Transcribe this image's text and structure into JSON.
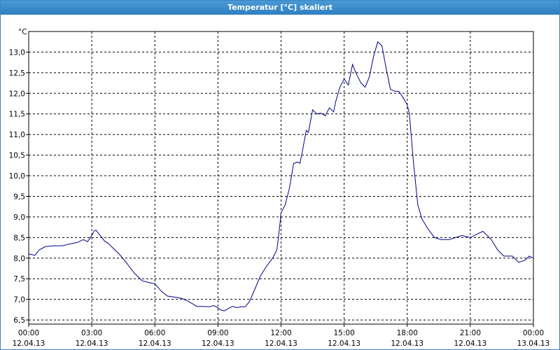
{
  "window": {
    "title": "Temperatur [°C] skaliert"
  },
  "chart_data": {
    "type": "line",
    "title": "Temperatur [°C] skaliert",
    "ylabel": "°C",
    "xlabel": "",
    "ylim": [
      6.4,
      13.5
    ],
    "y_ticks": [
      "6,5",
      "7,0",
      "7,5",
      "8,0",
      "8,5",
      "9,0",
      "9,5",
      "10,0",
      "10,5",
      "11,0",
      "11,5",
      "12,0",
      "12,5",
      "13,0"
    ],
    "y_tick_values": [
      6.5,
      7.0,
      7.5,
      8.0,
      8.5,
      9.0,
      9.5,
      10.0,
      10.5,
      11.0,
      11.5,
      12.0,
      12.5,
      13.0
    ],
    "x_ticks": [
      {
        "time": "00:00",
        "date": "12.04.13"
      },
      {
        "time": "03:00",
        "date": "12.04.13"
      },
      {
        "time": "06:00",
        "date": "12.04.13"
      },
      {
        "time": "09:00",
        "date": "12.04.13"
      },
      {
        "time": "12:00",
        "date": "12.04.13"
      },
      {
        "time": "15:00",
        "date": "12.04.13"
      },
      {
        "time": "18:00",
        "date": "12.04.13"
      },
      {
        "time": "21:00",
        "date": "12.04.13"
      },
      {
        "time": "00:00",
        "date": "13.04.13"
      }
    ],
    "x_tick_hours": [
      0,
      3,
      6,
      9,
      12,
      15,
      18,
      21,
      24
    ],
    "xlim_hours": [
      0,
      24
    ],
    "grid": true,
    "line_color": "#00008b",
    "series": [
      {
        "x": [
          0,
          0.3,
          0.5,
          0.8,
          1.2,
          1.6,
          2.0,
          2.3,
          2.6,
          2.8,
          3.0,
          3.1,
          3.2,
          3.4,
          3.6,
          3.8,
          4.0,
          4.3,
          4.6,
          5.0,
          5.4,
          5.8,
          6.0,
          6.3,
          6.6,
          7.0,
          7.3,
          7.6,
          8.0,
          8.3,
          8.6,
          8.8,
          9.0,
          9.1,
          9.3,
          9.5,
          9.7,
          9.9,
          10.1,
          10.3,
          10.5,
          10.8,
          11.0,
          11.3,
          11.6,
          11.8,
          11.9,
          12.0,
          12.2,
          12.4,
          12.6,
          12.8,
          12.9,
          13.0,
          13.2,
          13.3,
          13.5,
          13.7,
          13.9,
          14.1,
          14.3,
          14.5,
          14.6,
          14.8,
          15.0,
          15.2,
          15.4,
          15.6,
          15.8,
          16.0,
          16.2,
          16.4,
          16.6,
          16.8,
          17.0,
          17.2,
          17.4,
          17.6,
          17.8,
          18.0,
          18.1,
          18.3,
          18.5,
          18.7,
          19.0,
          19.3,
          19.6,
          20.0,
          20.3,
          20.6,
          21.0,
          21.3,
          21.6,
          22.0,
          22.3,
          22.6,
          23.0,
          23.3,
          23.6,
          23.8,
          24.0
        ],
        "y": [
          8.1,
          8.07,
          8.2,
          8.28,
          8.3,
          8.3,
          8.35,
          8.38,
          8.45,
          8.4,
          8.55,
          8.65,
          8.68,
          8.55,
          8.42,
          8.35,
          8.25,
          8.1,
          7.92,
          7.65,
          7.45,
          7.4,
          7.38,
          7.2,
          7.08,
          7.05,
          7.02,
          6.95,
          6.83,
          6.83,
          6.82,
          6.85,
          6.8,
          6.75,
          6.72,
          6.78,
          6.83,
          6.8,
          6.82,
          6.82,
          6.95,
          7.3,
          7.55,
          7.8,
          8.0,
          8.2,
          8.6,
          9.1,
          9.3,
          9.7,
          10.3,
          10.33,
          10.3,
          10.55,
          11.1,
          11.05,
          11.6,
          11.5,
          11.52,
          11.45,
          11.65,
          11.55,
          11.8,
          12.15,
          12.35,
          12.2,
          12.7,
          12.45,
          12.25,
          12.15,
          12.4,
          12.9,
          13.25,
          13.15,
          12.6,
          12.1,
          12.05,
          12.05,
          11.9,
          11.72,
          11.5,
          10.3,
          9.3,
          8.95,
          8.7,
          8.5,
          8.45,
          8.45,
          8.5,
          8.55,
          8.5,
          8.58,
          8.65,
          8.45,
          8.2,
          8.05,
          8.05,
          7.9,
          7.95,
          8.05,
          8.0
        ]
      }
    ]
  }
}
